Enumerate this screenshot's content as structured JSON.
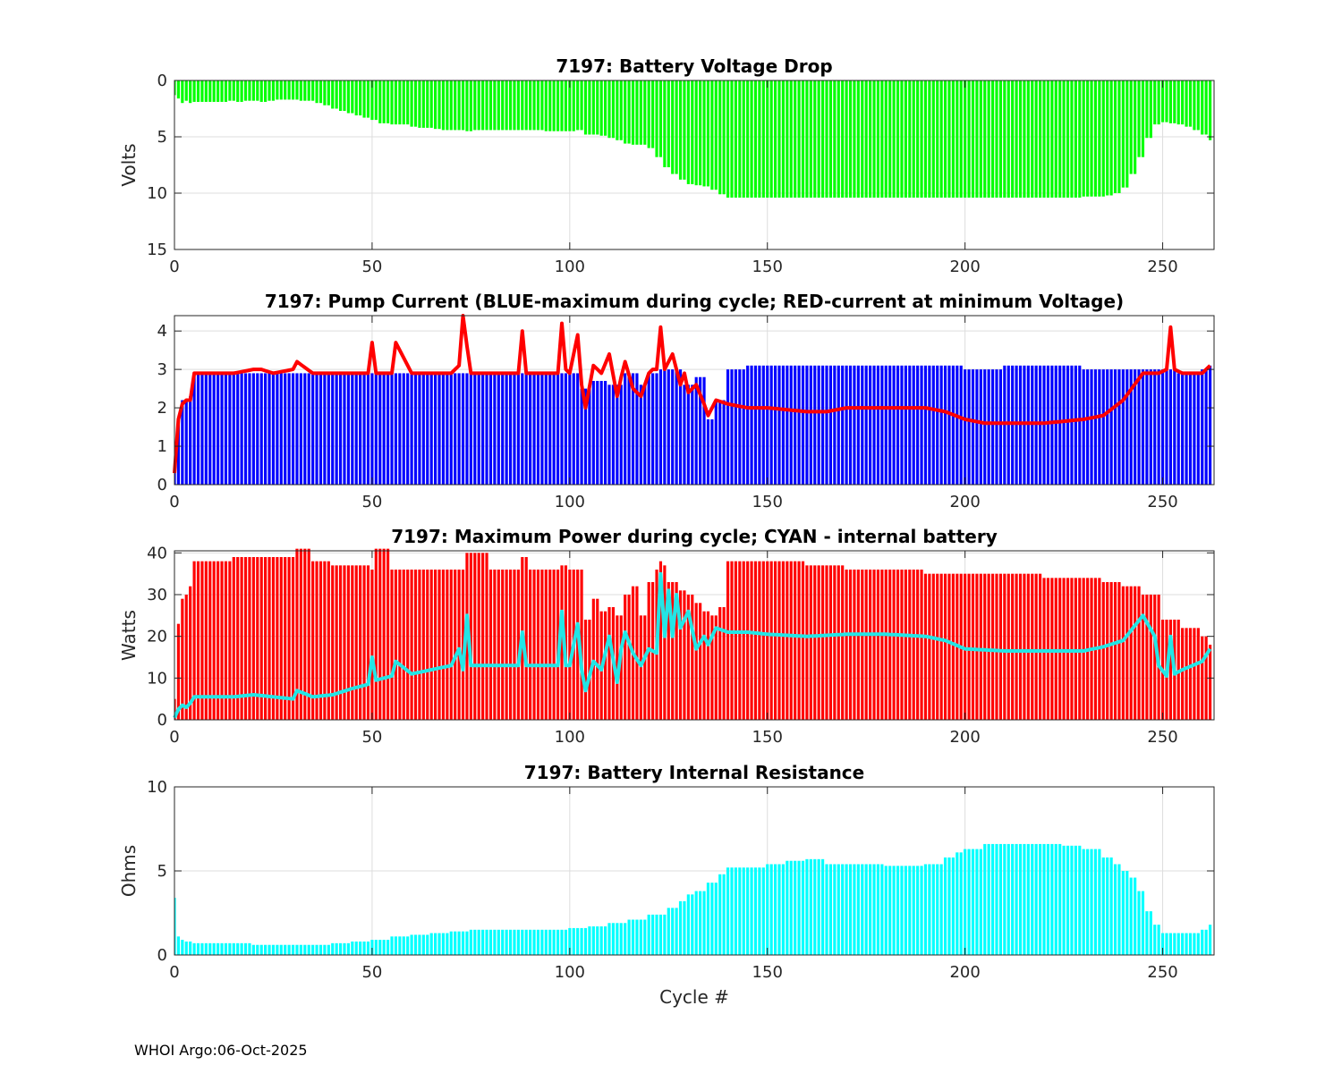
{
  "footer": "WHOI Argo:06-Oct-2025",
  "colors": {
    "voltage_bars": "#00ff00",
    "pump_max_bars": "#0000ff",
    "pump_min_line": "#ff0000",
    "power_bars": "#ff0000",
    "power_internal_line": "#22e6e6",
    "resistance_bars": "#00ffff"
  },
  "chart_data": [
    {
      "type": "bar",
      "title": "7197: Battery Voltage Drop",
      "xlabel": "",
      "ylabel": "Volts",
      "xlim": [
        0,
        263
      ],
      "ylim": [
        0,
        15
      ],
      "y_reversed": true,
      "xticks": [
        "0",
        "50",
        "100",
        "150",
        "200",
        "250"
      ],
      "yticks": [
        "0",
        "5",
        "10",
        "15"
      ],
      "grid": true,
      "series": [
        {
          "x": [
            0,
            1,
            2,
            3,
            4,
            5,
            6,
            8,
            10,
            12,
            14,
            16,
            18,
            20,
            22,
            24,
            26,
            28,
            30,
            32,
            34,
            36,
            38,
            40,
            42,
            44,
            46,
            48,
            50,
            52,
            55,
            58,
            60,
            62,
            64,
            66,
            68,
            70,
            72,
            74,
            76,
            80,
            84,
            88,
            90,
            94,
            98,
            100,
            102,
            104,
            106,
            108,
            110,
            112,
            114,
            116,
            118,
            120,
            122,
            124,
            126,
            128,
            130,
            132,
            134,
            136,
            138,
            140,
            145,
            150,
            160,
            170,
            180,
            190,
            200,
            210,
            220,
            230,
            236,
            238,
            240,
            242,
            244,
            246,
            248,
            250,
            252,
            254,
            256,
            258,
            260,
            262
          ],
          "values": [
            1.3,
            1.6,
            2.0,
            1.8,
            2.0,
            1.9,
            1.9,
            1.9,
            1.9,
            1.9,
            1.8,
            1.9,
            1.8,
            1.8,
            1.9,
            1.8,
            1.7,
            1.7,
            1.7,
            1.8,
            1.8,
            2.0,
            2.2,
            2.5,
            2.7,
            2.9,
            3.1,
            3.3,
            3.5,
            3.8,
            3.9,
            3.9,
            4.1,
            4.2,
            4.2,
            4.3,
            4.4,
            4.4,
            4.4,
            4.5,
            4.4,
            4.4,
            4.4,
            4.4,
            4.4,
            4.5,
            4.5,
            4.5,
            4.4,
            4.8,
            4.8,
            4.9,
            5.1,
            5.3,
            5.6,
            5.7,
            5.7,
            6.0,
            6.8,
            7.7,
            8.3,
            8.8,
            9.2,
            9.3,
            9.4,
            9.7,
            10.1,
            10.4,
            10.4,
            10.4,
            10.4,
            10.4,
            10.4,
            10.4,
            10.4,
            10.4,
            10.4,
            10.3,
            10.2,
            10.0,
            9.5,
            8.3,
            6.8,
            5.1,
            3.9,
            3.7,
            3.8,
            3.9,
            4.1,
            4.4,
            4.8,
            5.3
          ]
        }
      ]
    },
    {
      "type": "bar",
      "title": "7197: Pump Current (BLUE-maximum during cycle; RED-current at minimum Voltage)",
      "xlabel": "",
      "ylabel": "",
      "xlim": [
        0,
        263
      ],
      "ylim": [
        0,
        4.4
      ],
      "xticks": [
        "0",
        "50",
        "100",
        "150",
        "200",
        "250"
      ],
      "yticks": [
        "0",
        "1",
        "2",
        "3",
        "4"
      ],
      "grid": true,
      "series": [
        {
          "type": "bar",
          "x": [
            0,
            1,
            2,
            3,
            4,
            5,
            10,
            20,
            30,
            40,
            50,
            60,
            70,
            73,
            74,
            80,
            88,
            90,
            98,
            100,
            102,
            103,
            106,
            110,
            114,
            118,
            120,
            123,
            126,
            129,
            132,
            135,
            137,
            140,
            145,
            150,
            160,
            170,
            180,
            190,
            200,
            210,
            220,
            230,
            240,
            245,
            250,
            252,
            254,
            260,
            262
          ],
          "values": [
            0.3,
            1.7,
            2.2,
            2.2,
            2.3,
            2.9,
            2.9,
            2.9,
            2.9,
            2.9,
            2.9,
            2.9,
            2.9,
            2.9,
            2.9,
            2.9,
            2.9,
            2.9,
            2.9,
            2.9,
            2.9,
            2.5,
            2.7,
            2.6,
            2.9,
            2.6,
            2.9,
            3.0,
            3.0,
            2.6,
            2.8,
            1.7,
            2.2,
            3.0,
            3.1,
            3.1,
            3.1,
            3.1,
            3.1,
            3.1,
            3.0,
            3.1,
            3.1,
            3.0,
            3.0,
            3.0,
            3.0,
            3.0,
            2.9,
            3.0,
            3.1
          ]
        },
        {
          "type": "line",
          "x": [
            0,
            1,
            2,
            3,
            4,
            5,
            10,
            15,
            20,
            22,
            25,
            30,
            31,
            35,
            40,
            45,
            49,
            50,
            51,
            55,
            56,
            60,
            70,
            72,
            73,
            74,
            75,
            80,
            87,
            88,
            89,
            95,
            97,
            98,
            99,
            100,
            102,
            103,
            104,
            106,
            108,
            110,
            112,
            113,
            114,
            116,
            118,
            120,
            121,
            122,
            123,
            124,
            126,
            128,
            129,
            130,
            132,
            134,
            135,
            137,
            140,
            145,
            150,
            160,
            165,
            170,
            180,
            190,
            195,
            200,
            205,
            210,
            220,
            230,
            235,
            240,
            245,
            249,
            251,
            252,
            253,
            255,
            260,
            262
          ],
          "values": [
            0.3,
            1.7,
            2.1,
            2.2,
            2.2,
            2.9,
            2.9,
            2.9,
            3.0,
            3.0,
            2.9,
            3.0,
            3.2,
            2.9,
            2.9,
            2.9,
            2.9,
            3.7,
            2.9,
            2.9,
            3.7,
            2.9,
            2.9,
            3.1,
            4.4,
            3.6,
            2.9,
            2.9,
            2.9,
            4.0,
            2.9,
            2.9,
            2.9,
            4.2,
            3.0,
            2.9,
            3.9,
            2.6,
            2.0,
            3.1,
            2.9,
            3.4,
            2.3,
            2.8,
            3.2,
            2.5,
            2.3,
            2.9,
            3.0,
            3.0,
            4.1,
            3.0,
            3.4,
            2.6,
            2.9,
            2.4,
            2.6,
            2.1,
            1.8,
            2.2,
            2.1,
            2.0,
            2.0,
            1.9,
            1.9,
            2.0,
            2.0,
            2.0,
            1.9,
            1.7,
            1.6,
            1.6,
            1.6,
            1.7,
            1.8,
            2.2,
            2.9,
            2.9,
            3.0,
            4.1,
            3.0,
            2.9,
            2.9,
            3.1
          ]
        }
      ]
    },
    {
      "type": "bar",
      "title": "7197: Maximum Power during cycle; CYAN - internal battery",
      "xlabel": "",
      "ylabel": "Watts",
      "xlim": [
        0,
        263
      ],
      "ylim": [
        0,
        40.5
      ],
      "xticks": [
        "0",
        "50",
        "100",
        "150",
        "200",
        "250"
      ],
      "yticks": [
        "0",
        "10",
        "20",
        "30",
        "40"
      ],
      "grid": true,
      "series": [
        {
          "type": "bar",
          "x": [
            0,
            1,
            2,
            3,
            4,
            5,
            10,
            15,
            20,
            25,
            30,
            31,
            35,
            40,
            45,
            50,
            51,
            55,
            60,
            70,
            74,
            80,
            88,
            90,
            95,
            98,
            100,
            102,
            104,
            106,
            108,
            110,
            112,
            114,
            116,
            118,
            120,
            122,
            123,
            124,
            125,
            126,
            128,
            130,
            132,
            134,
            136,
            138,
            140,
            145,
            150,
            160,
            170,
            180,
            190,
            200,
            210,
            220,
            230,
            235,
            240,
            245,
            250,
            255,
            260,
            262
          ],
          "values": [
            5,
            23,
            29,
            30,
            32,
            38,
            38,
            39,
            39,
            39,
            39,
            41,
            38,
            37,
            37,
            36,
            41,
            36,
            36,
            36,
            40,
            36,
            39,
            36,
            36,
            37,
            36,
            36,
            24,
            29,
            26,
            27,
            25,
            30,
            32,
            25,
            33,
            36,
            38,
            37,
            33,
            33,
            31,
            30,
            28,
            26,
            25,
            27,
            38,
            38,
            38,
            37,
            36,
            36,
            35,
            35,
            35,
            34,
            34,
            33,
            32,
            30,
            24,
            22,
            20,
            18
          ]
        },
        {
          "type": "line",
          "x": [
            0,
            1,
            2,
            3,
            4,
            5,
            10,
            15,
            20,
            25,
            30,
            31,
            35,
            40,
            45,
            49,
            50,
            51,
            55,
            56,
            60,
            65,
            70,
            72,
            73,
            74,
            75,
            80,
            87,
            88,
            89,
            95,
            97,
            98,
            99,
            100,
            102,
            103,
            104,
            106,
            108,
            110,
            112,
            113,
            114,
            116,
            118,
            120,
            122,
            123,
            124,
            125,
            126,
            127,
            128,
            130,
            132,
            134,
            135,
            137,
            140,
            145,
            150,
            160,
            170,
            180,
            190,
            195,
            200,
            210,
            220,
            230,
            235,
            240,
            245,
            248,
            249,
            251,
            252,
            253,
            255,
            260,
            262
          ],
          "values": [
            0.5,
            2.5,
            3.5,
            3.0,
            4.0,
            5.5,
            5.5,
            5.5,
            6.0,
            5.5,
            5.0,
            7.0,
            5.5,
            6.0,
            7.5,
            8.5,
            15.0,
            9.5,
            10.5,
            14.0,
            11.0,
            12.0,
            13.0,
            17.0,
            12.0,
            25.0,
            13.0,
            13.0,
            13.0,
            21.0,
            13.0,
            13.0,
            13.0,
            26.0,
            13.0,
            13.0,
            23.0,
            12.0,
            7.0,
            14.0,
            12.0,
            20.0,
            9.0,
            17.0,
            21.0,
            16.0,
            13.0,
            17.0,
            16.0,
            35.0,
            20.0,
            31.0,
            20.0,
            30.0,
            22.0,
            26.0,
            17.0,
            20.0,
            18.0,
            22.0,
            21.0,
            21.0,
            20.5,
            20.0,
            20.5,
            20.5,
            20.0,
            19.0,
            17.0,
            16.5,
            16.5,
            16.5,
            17.5,
            19.0,
            25.0,
            20.0,
            13.0,
            10.5,
            20.0,
            11.0,
            12.0,
            14.0,
            17.0
          ]
        }
      ]
    },
    {
      "type": "bar",
      "title": "7197: Battery Internal Resistance",
      "xlabel": "Cycle #",
      "ylabel": "Ohms",
      "xlim": [
        0,
        263
      ],
      "ylim": [
        0,
        10
      ],
      "xticks": [
        "0",
        "50",
        "100",
        "150",
        "200",
        "250"
      ],
      "yticks": [
        "0",
        "5",
        "10"
      ],
      "grid": true,
      "series": [
        {
          "x": [
            0,
            1,
            2,
            3,
            5,
            10,
            20,
            30,
            35,
            40,
            45,
            50,
            55,
            60,
            65,
            70,
            75,
            80,
            90,
            100,
            105,
            110,
            115,
            120,
            125,
            128,
            130,
            132,
            135,
            138,
            140,
            145,
            150,
            155,
            160,
            165,
            170,
            180,
            190,
            195,
            198,
            200,
            205,
            210,
            220,
            225,
            230,
            235,
            238,
            240,
            242,
            244,
            246,
            248,
            250,
            255,
            260,
            262
          ],
          "values": [
            3.4,
            1.1,
            0.9,
            0.8,
            0.7,
            0.7,
            0.6,
            0.6,
            0.6,
            0.7,
            0.8,
            0.9,
            1.1,
            1.2,
            1.3,
            1.4,
            1.5,
            1.5,
            1.5,
            1.6,
            1.7,
            1.9,
            2.1,
            2.4,
            2.8,
            3.2,
            3.6,
            3.8,
            4.3,
            4.8,
            5.2,
            5.2,
            5.4,
            5.6,
            5.7,
            5.4,
            5.4,
            5.3,
            5.4,
            5.8,
            6.1,
            6.3,
            6.6,
            6.6,
            6.6,
            6.5,
            6.3,
            5.8,
            5.4,
            5.0,
            4.6,
            3.8,
            2.6,
            1.8,
            1.3,
            1.3,
            1.5,
            1.8
          ]
        }
      ]
    }
  ]
}
